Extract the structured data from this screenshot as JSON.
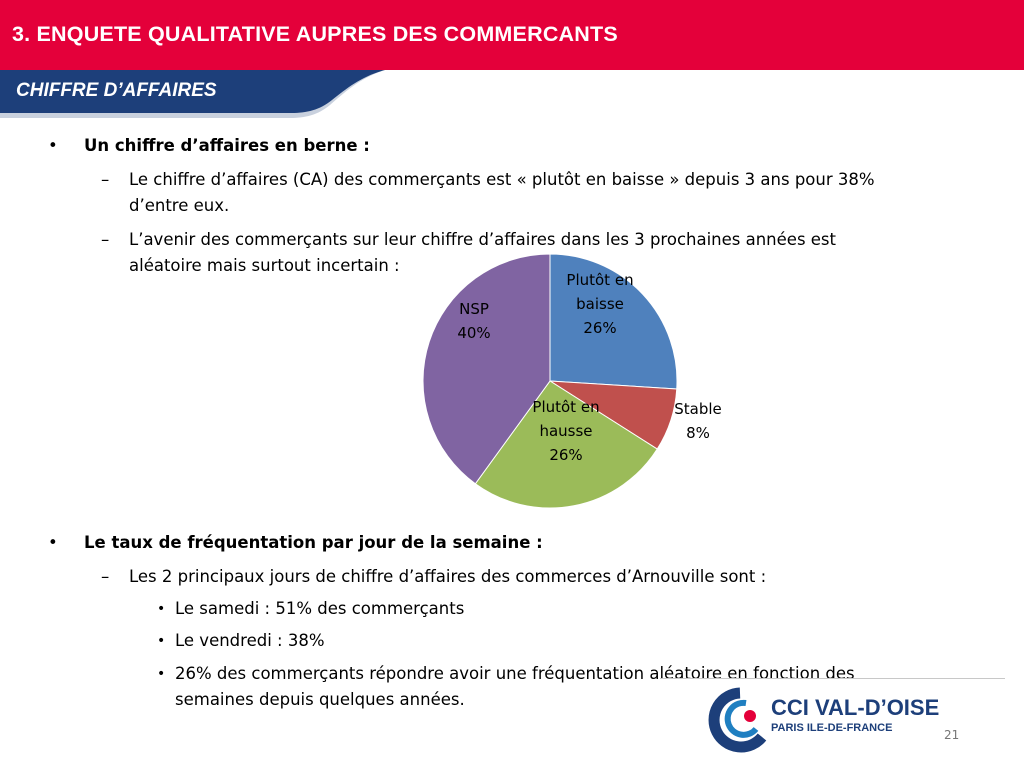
{
  "header": {
    "title": "3. ENQUETE QUALITATIVE AUPRES DES COMMERCANTS",
    "subtitle": "CHIFFRE D’AFFAIRES",
    "bar_color": "#e4003a",
    "sub_color": "#1d3f7a"
  },
  "body": {
    "bullet_symbol": "•",
    "dash_symbol": "–",
    "section1": {
      "heading": "Un chiffre d’affaires en berne :",
      "item1_line1": "Le chiffre d’affaires (CA) des commerçants est « plutôt en baisse » depuis 3 ans pour 38%",
      "item1_line2": "d’entre eux.",
      "item2_line1": "L’avenir des commerçants sur leur chiffre d’affaires dans les 3 prochaines années est",
      "item2_line2": "aléatoire mais surtout incertain :"
    },
    "section2": {
      "heading": "Le taux de fréquentation par jour de la semaine :",
      "item1": "Les 2 principaux jours de chiffre d’affaires des commerces d’Arnouville sont :",
      "sub1": "Le samedi : 51% des commerçants",
      "sub2": "Le vendredi : 38%",
      "sub3_line1": "26% des commerçants répondre avoir une fréquentation aléatoire en fonction des",
      "sub3_line2": "semaines depuis quelques années."
    }
  },
  "chart_data": {
    "type": "pie",
    "title": "",
    "slices": [
      {
        "label": "Plutôt en baisse",
        "label_lines": [
          "Plutôt en",
          "baisse"
        ],
        "value": 26,
        "pct": "26%",
        "color": "#4f81bd"
      },
      {
        "label": "Stable",
        "label_lines": [
          "Stable"
        ],
        "value": 8,
        "pct": "8%",
        "color": "#c0504d"
      },
      {
        "label": "Plutôt en hausse",
        "label_lines": [
          "Plutôt en",
          "hausse"
        ],
        "value": 26,
        "pct": "26%",
        "color": "#9bbb59"
      },
      {
        "label": "NSP",
        "label_lines": [
          "NSP"
        ],
        "value": 40,
        "pct": "40%",
        "color": "#8064a2"
      }
    ]
  },
  "footer": {
    "logo_main": "CCI VAL-D’OISE",
    "logo_sub": "PARIS ILE-DE-FRANCE",
    "page_number": "21"
  }
}
